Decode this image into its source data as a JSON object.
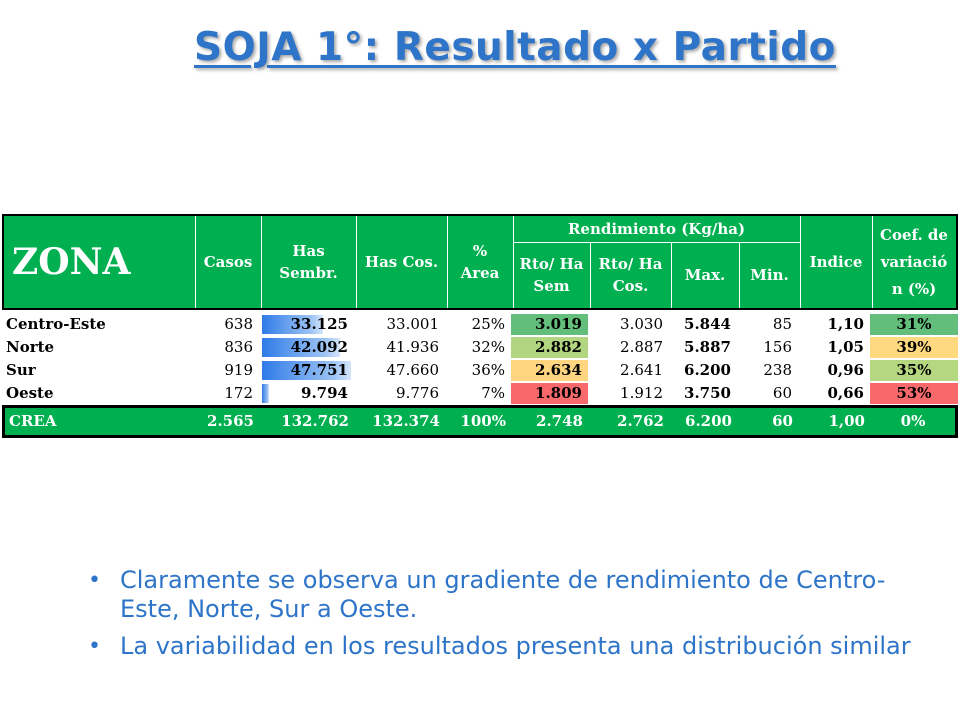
{
  "title": "SOJA 1°: Resultado x Partido",
  "table": {
    "headers": {
      "zona": "ZONA",
      "casos": "Casos",
      "has_sembr_1": "Has",
      "has_sembr_2": "Sembr.",
      "has_cos": "Has Cos.",
      "area_1": "%",
      "area_2": "Area",
      "rendimiento": "Rendimiento (Kg/ha)",
      "rto_sem_1": "Rto/ Ha",
      "rto_sem_2": "Sem",
      "rto_cos_1": "Rto/ Ha",
      "rto_cos_2": "Cos.",
      "max": "Max.",
      "min": "Min.",
      "indice": "Indice",
      "coef_1": "Coef. de",
      "coef_2": "variació",
      "coef_3": "n (%)"
    },
    "rows": [
      {
        "zona": "Centro-Este",
        "casos": "638",
        "has_sembr": "33.125",
        "has_sembr_fill": 0.69,
        "has_cos": "33.001",
        "area": "25%",
        "rto_sem": "3.019",
        "rto_sem_color": "#63BE7B",
        "rto_cos": "3.030",
        "max": "5.844",
        "min": "85",
        "indice": "1,10",
        "coef": "31%",
        "coef_color": "#63BE7B"
      },
      {
        "zona": "Norte",
        "casos": "836",
        "has_sembr": "42.092",
        "has_sembr_fill": 0.88,
        "has_cos": "41.936",
        "area": "32%",
        "rto_sem": "2.882",
        "rto_sem_color": "#B1D580",
        "rto_cos": "2.887",
        "max": "5.887",
        "min": "156",
        "indice": "1,05",
        "coef": "39%",
        "coef_color": "#FFD97F"
      },
      {
        "zona": "Sur",
        "casos": "919",
        "has_sembr": "47.751",
        "has_sembr_fill": 1.0,
        "has_cos": "47.660",
        "area": "36%",
        "rto_sem": "2.634",
        "rto_sem_color": "#FFD580",
        "rto_cos": "2.641",
        "max": "6.200",
        "min": "238",
        "indice": "0,96",
        "coef": "35%",
        "coef_color": "#B5D77F"
      },
      {
        "zona": "Oeste",
        "casos": "172",
        "has_sembr": "9.794",
        "has_sembr_fill": 0.08,
        "has_cos": "9.776",
        "area": "7%",
        "rto_sem": "1.809",
        "rto_sem_color": "#F8696B",
        "rto_cos": "1.912",
        "max": "3.750",
        "min": "60",
        "indice": "0,66",
        "coef": "53%",
        "coef_color": "#F8696B"
      }
    ],
    "total": {
      "zona": "CREA",
      "casos": "2.565",
      "has_sembr": "132.762",
      "has_cos": "132.374",
      "area": "100%",
      "rto_sem": "2.748",
      "rto_cos": "2.762",
      "max": "6.200",
      "min": "60",
      "indice": "1,00",
      "coef": "0%"
    }
  },
  "bullets": [
    "Claramente se observa un gradiente de rendimiento de Centro-Este, Norte, Sur a Oeste.",
    "La variabilidad en los resultados presenta una distribución similar"
  ]
}
